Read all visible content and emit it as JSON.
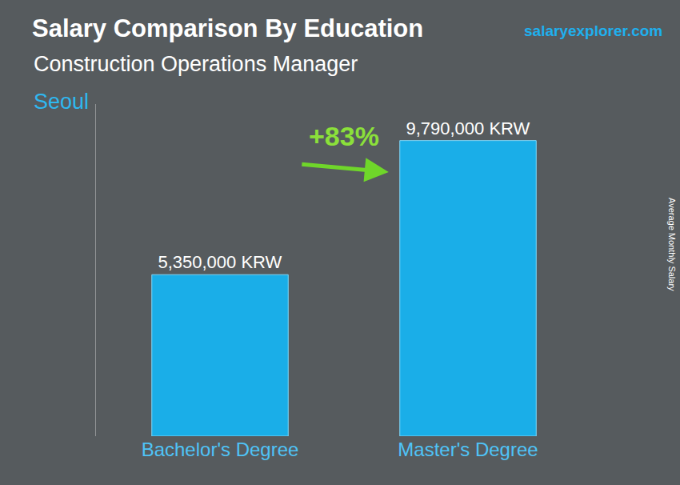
{
  "chart_data": {
    "type": "bar",
    "title": "Salary Comparison By Education",
    "subtitle": "Construction Operations Manager",
    "location": "Seoul",
    "watermark": "salaryexplorer.com",
    "y_label": "Average Monthly Salary",
    "annotations": [
      "+83%"
    ],
    "categories": [
      "Bachelor's Degree",
      "Master's Degree"
    ],
    "values": [
      5350000,
      9790000
    ],
    "value_labels": [
      "5,350,000 KRW",
      "9,790,000 KRW"
    ],
    "color": "#1aaee8",
    "ylim": [
      0,
      11000000
    ],
    "grid": false,
    "data_labels": true,
    "tick_labels": "x"
  }
}
